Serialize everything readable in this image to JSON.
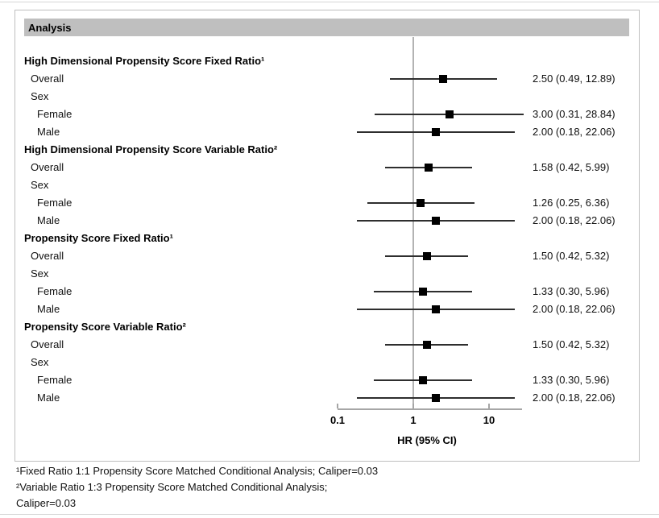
{
  "header": {
    "title": "Analysis"
  },
  "chart_data": {
    "type": "forest",
    "axis": {
      "label": "HR (95% CI)",
      "scale": "log",
      "ticks": [
        0.1,
        1,
        10
      ],
      "tick_labels": [
        "0.1",
        "1",
        "10"
      ],
      "range_min": 0.1,
      "range_max": 27,
      "reference_line": 1
    },
    "rows": [
      {
        "label": "High Dimensional Propensity Score Fixed Ratio¹",
        "level": "group"
      },
      {
        "label": "Overall",
        "level": "sub",
        "hr": 2.5,
        "ci_low": 0.49,
        "ci_high": 12.89,
        "display": "2.50 (0.49, 12.89)"
      },
      {
        "label": "Sex",
        "level": "sub"
      },
      {
        "label": "Female",
        "level": "subsub",
        "hr": 3.0,
        "ci_low": 0.31,
        "ci_high": 28.84,
        "display": "3.00 (0.31, 28.84)"
      },
      {
        "label": "Male",
        "level": "subsub",
        "hr": 2.0,
        "ci_low": 0.18,
        "ci_high": 22.06,
        "display": "2.00 (0.18, 22.06)"
      },
      {
        "label": "High Dimensional Propensity Score Variable Ratio²",
        "level": "group"
      },
      {
        "label": "Overall",
        "level": "sub",
        "hr": 1.58,
        "ci_low": 0.42,
        "ci_high": 5.99,
        "display": "1.58 (0.42, 5.99)"
      },
      {
        "label": "Sex",
        "level": "sub"
      },
      {
        "label": "Female",
        "level": "subsub",
        "hr": 1.26,
        "ci_low": 0.25,
        "ci_high": 6.36,
        "display": "1.26 (0.25, 6.36)"
      },
      {
        "label": "Male",
        "level": "subsub",
        "hr": 2.0,
        "ci_low": 0.18,
        "ci_high": 22.06,
        "display": "2.00 (0.18, 22.06)"
      },
      {
        "label": "Propensity Score Fixed Ratio¹",
        "level": "group"
      },
      {
        "label": "Overall",
        "level": "sub",
        "hr": 1.5,
        "ci_low": 0.42,
        "ci_high": 5.32,
        "display": "1.50 (0.42, 5.32)"
      },
      {
        "label": "Sex",
        "level": "sub"
      },
      {
        "label": "Female",
        "level": "subsub",
        "hr": 1.33,
        "ci_low": 0.3,
        "ci_high": 5.96,
        "display": "1.33 (0.30, 5.96)"
      },
      {
        "label": "Male",
        "level": "subsub",
        "hr": 2.0,
        "ci_low": 0.18,
        "ci_high": 22.06,
        "display": "2.00 (0.18, 22.06)"
      },
      {
        "label": "Propensity Score Variable Ratio²",
        "level": "group"
      },
      {
        "label": "Overall",
        "level": "sub",
        "hr": 1.5,
        "ci_low": 0.42,
        "ci_high": 5.32,
        "display": "1.50 (0.42, 5.32)"
      },
      {
        "label": "Sex",
        "level": "sub"
      },
      {
        "label": "Female",
        "level": "subsub",
        "hr": 1.33,
        "ci_low": 0.3,
        "ci_high": 5.96,
        "display": "1.33 (0.30, 5.96)"
      },
      {
        "label": "Male",
        "level": "subsub",
        "hr": 2.0,
        "ci_low": 0.18,
        "ci_high": 22.06,
        "display": "2.00 (0.18, 22.06)"
      }
    ],
    "footnotes": [
      "¹Fixed Ratio 1:1 Propensity Score Matched Conditional Analysis; Caliper=0.03",
      "²Variable Ratio 1:3 Propensity Score Matched Conditional Analysis;",
      "Caliper=0.03"
    ]
  },
  "colors": {
    "header_fill": "#bfbfbf",
    "box_border": "#bfbfbf",
    "reference_line": "#b3b3b3",
    "axis_line": "#a6a6a6",
    "ci_line": "#2e2e2e",
    "marker": "#000000"
  }
}
